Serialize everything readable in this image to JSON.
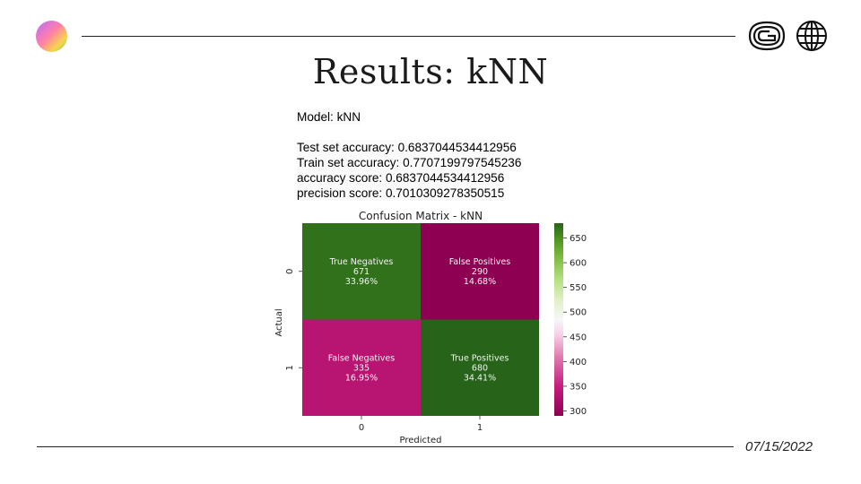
{
  "slide": {
    "title": "Results: kNN",
    "date": "07/15/2022",
    "icons": {
      "logo": "gradient-circle-logo",
      "brand": "brand-mark-icon",
      "globe": "globe-icon"
    }
  },
  "output": {
    "model": "Model: kNN",
    "lines": [
      "Test set accuracy: 0.6837044534412956",
      "Train set accuracy: 0.7707199797545236",
      "accuracy score: 0.6837044534412956",
      "precision score: 0.7010309278350515"
    ]
  },
  "chart_data": {
    "type": "heatmap",
    "title": "Confusion Matrix - kNN",
    "xlabel": "Predicted",
    "ylabel": "Actual",
    "x_ticks": [
      "0",
      "1"
    ],
    "y_ticks": [
      "0",
      "1"
    ],
    "cells": [
      [
        {
          "label": "True Negatives",
          "count": "671",
          "pct": "33.96%",
          "value": 671
        },
        {
          "label": "False Positives",
          "count": "290",
          "pct": "14.68%",
          "value": 290
        }
      ],
      [
        {
          "label": "False Negatives",
          "count": "335",
          "pct": "16.95%",
          "value": 335
        },
        {
          "label": "True Positives",
          "count": "680",
          "pct": "34.41%",
          "value": 680
        }
      ]
    ],
    "colormap": "PiYG",
    "colorbar": {
      "min": 290,
      "max": 680,
      "ticks": [
        "300",
        "350",
        "400",
        "450",
        "500",
        "550",
        "600",
        "650"
      ]
    }
  }
}
